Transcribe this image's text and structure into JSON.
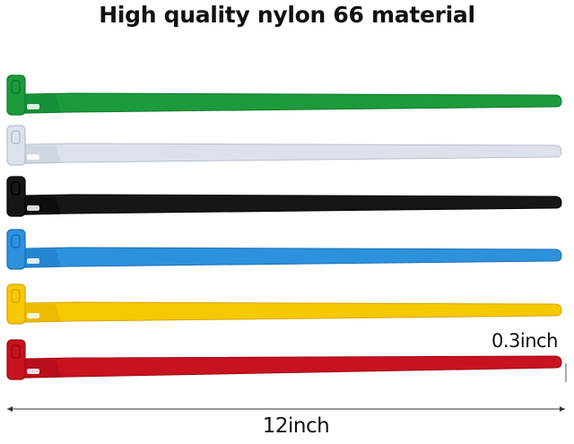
{
  "title": "High quality nylon 66 material",
  "ties": [
    {
      "color_name": "green",
      "color": "#1c9a3c",
      "dark": "#0f7a2a"
    },
    {
      "color_name": "white",
      "color": "#dde2ea",
      "dark": "#b8c0cc"
    },
    {
      "color_name": "black",
      "color": "#161616",
      "dark": "#000000"
    },
    {
      "color_name": "blue",
      "color": "#2d91dc",
      "dark": "#1a6fb8"
    },
    {
      "color_name": "yellow",
      "color": "#f6c800",
      "dark": "#d9a400"
    },
    {
      "color_name": "red",
      "color": "#c8121f",
      "dark": "#9e0a15"
    }
  ],
  "dimensions": {
    "width": "0.3inch",
    "length": "12inch"
  }
}
